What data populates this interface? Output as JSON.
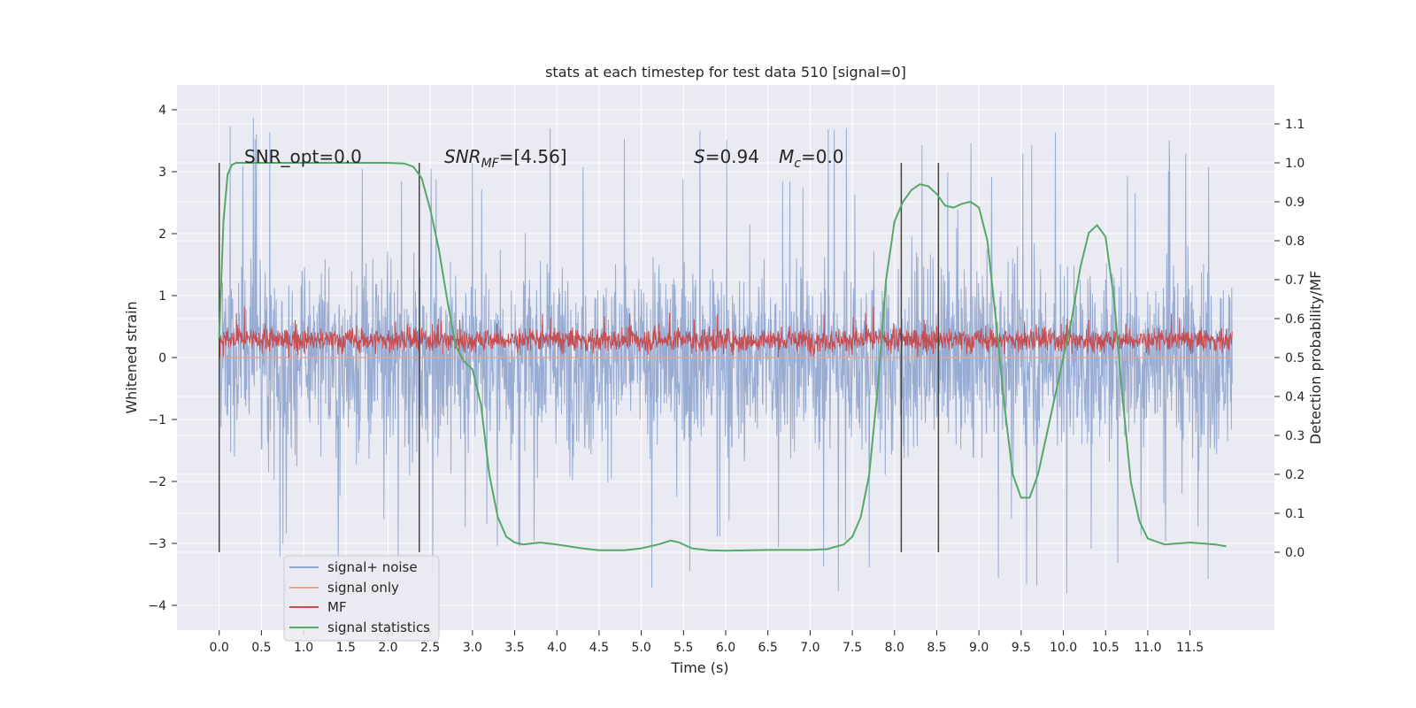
{
  "chart_data": {
    "type": "line",
    "title": "stats at each timestep for test data 510 [signal=0]",
    "xlabel": "Time (s)",
    "ylabel_left": "Whitened strain",
    "ylabel_right": "Detection probability/MF",
    "xlim": [
      -0.5,
      12.5
    ],
    "ylim_left": [
      -4.4,
      4.4
    ],
    "ylim_right": [
      -0.2,
      1.2
    ],
    "x_ticks": [
      "0.0",
      "0.5",
      "1.0",
      "1.5",
      "2.0",
      "2.5",
      "3.0",
      "3.5",
      "4.0",
      "4.5",
      "5.0",
      "5.5",
      "6.0",
      "6.5",
      "7.0",
      "7.5",
      "8.0",
      "8.5",
      "9.0",
      "9.5",
      "10.0",
      "10.5",
      "11.0",
      "11.5"
    ],
    "y_ticks_left": [
      "4",
      "3",
      "2",
      "1",
      "0",
      "−1",
      "−2",
      "−3",
      "−4"
    ],
    "y_ticks_right": [
      "1.1",
      "1.0",
      "0.9",
      "0.8",
      "0.7",
      "0.6",
      "0.5",
      "0.4",
      "0.3",
      "0.2",
      "0.1",
      "0.0"
    ],
    "grid": true,
    "annotations": {
      "snr_opt": "SNR_opt=0.0",
      "snr_mf_sym": "SNR",
      "snr_mf_sub": "MF",
      "snr_mf_val": "=[4.56]",
      "s_sym": "S",
      "s_val": "=0.94",
      "mc_sym": "M",
      "mc_sub": "c",
      "mc_val": "=0.0"
    },
    "vertical_lines_x": [
      0.0,
      2.37,
      8.08,
      8.52
    ],
    "series": [
      {
        "name": "signal+ noise",
        "axis": "left",
        "color": "#8fa5cf",
        "style": "noise",
        "x_range": [
          0.0,
          12.0
        ],
        "y_range": [
          -4.1,
          4.0
        ]
      },
      {
        "name": "signal only",
        "axis": "left",
        "color": "#e8a58b",
        "style": "flat",
        "y": 0.0
      },
      {
        "name": "MF",
        "axis": "left",
        "color": "#c44e52",
        "style": "noise",
        "x_range": [
          0.0,
          12.0
        ],
        "y_range": [
          0.0,
          0.95
        ]
      },
      {
        "name": "signal statistics",
        "axis": "right",
        "color": "#55a868",
        "style": "line",
        "x": [
          0.0,
          0.05,
          0.1,
          0.15,
          0.2,
          0.3,
          0.5,
          1.0,
          1.5,
          2.0,
          2.2,
          2.3,
          2.4,
          2.5,
          2.6,
          2.7,
          2.8,
          2.9,
          3.0,
          3.1,
          3.2,
          3.3,
          3.4,
          3.5,
          3.6,
          3.8,
          4.0,
          4.3,
          4.5,
          4.8,
          5.0,
          5.2,
          5.35,
          5.45,
          5.6,
          5.8,
          6.0,
          6.5,
          7.0,
          7.2,
          7.4,
          7.5,
          7.6,
          7.7,
          7.8,
          7.9,
          8.0,
          8.1,
          8.2,
          8.3,
          8.4,
          8.5,
          8.6,
          8.7,
          8.8,
          8.9,
          9.0,
          9.1,
          9.2,
          9.3,
          9.4,
          9.5,
          9.6,
          9.7,
          9.8,
          10.0,
          10.1,
          10.2,
          10.3,
          10.4,
          10.5,
          10.6,
          10.7,
          10.8,
          10.9,
          11.0,
          11.2,
          11.5,
          11.8,
          11.93
        ],
        "y": [
          0.55,
          0.85,
          0.97,
          0.995,
          1.0,
          1.0,
          1.0,
          1.0,
          1.0,
          1.0,
          0.998,
          0.99,
          0.96,
          0.88,
          0.78,
          0.65,
          0.53,
          0.49,
          0.47,
          0.38,
          0.2,
          0.09,
          0.04,
          0.025,
          0.02,
          0.025,
          0.02,
          0.01,
          0.005,
          0.005,
          0.01,
          0.02,
          0.03,
          0.025,
          0.01,
          0.005,
          0.004,
          0.006,
          0.006,
          0.008,
          0.02,
          0.04,
          0.09,
          0.2,
          0.42,
          0.7,
          0.85,
          0.9,
          0.93,
          0.945,
          0.94,
          0.92,
          0.89,
          0.885,
          0.895,
          0.9,
          0.885,
          0.8,
          0.6,
          0.38,
          0.2,
          0.14,
          0.14,
          0.2,
          0.3,
          0.5,
          0.6,
          0.73,
          0.82,
          0.84,
          0.81,
          0.65,
          0.4,
          0.18,
          0.08,
          0.035,
          0.02,
          0.025,
          0.02,
          0.015
        ]
      }
    ],
    "legend": {
      "placement": "lower-left",
      "items": [
        "signal+ noise",
        "signal only",
        "MF",
        "signal statistics"
      ]
    }
  }
}
